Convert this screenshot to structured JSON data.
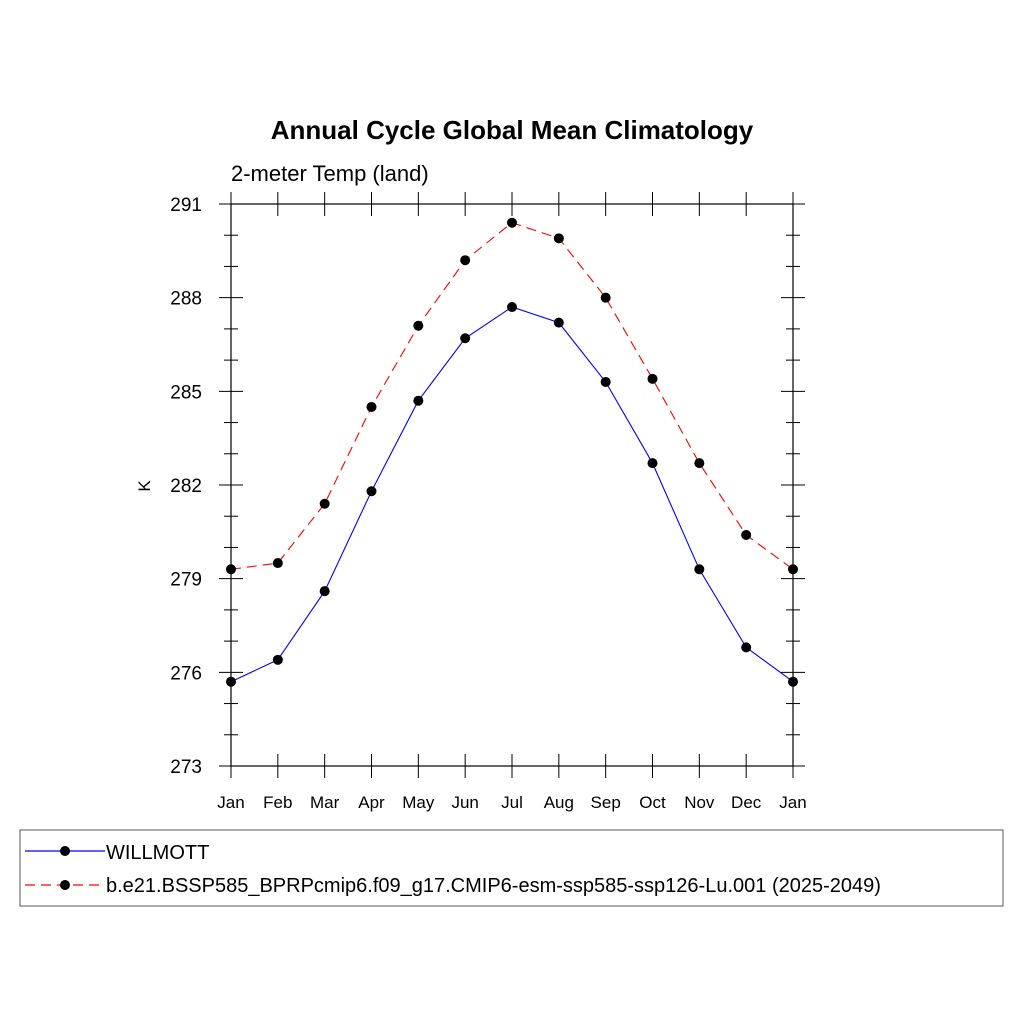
{
  "chart_data": {
    "type": "line",
    "title": "Annual Cycle Global Mean Climatology",
    "subtitle": "2-meter Temp (land)",
    "ylabel": "K",
    "xlabel": "",
    "categories": [
      "Jan",
      "Feb",
      "Mar",
      "Apr",
      "May",
      "Jun",
      "Jul",
      "Aug",
      "Sep",
      "Oct",
      "Nov",
      "Dec",
      "Jan"
    ],
    "ylim": [
      273,
      291
    ],
    "yticks": [
      273,
      276,
      279,
      282,
      285,
      288,
      291
    ],
    "yticks_labels": [
      "273",
      "276",
      "279",
      "282",
      "285",
      "288",
      "291"
    ],
    "grid": false,
    "legend_position": "bottom",
    "series": [
      {
        "name": "WILLMOTT",
        "color": "#0000ff",
        "dash": "solid",
        "marker": "filled-circle",
        "values": [
          275.7,
          276.4,
          278.6,
          281.8,
          284.7,
          286.7,
          287.7,
          287.2,
          285.3,
          282.7,
          279.3,
          276.8,
          275.7
        ]
      },
      {
        "name": "b.e21.BSSP585_BPRPcmip6.f09_g17.CMIP6-esm-ssp585-ssp126-Lu.001 (2025-2049)",
        "color": "#ff0000",
        "dash": "dashed",
        "marker": "filled-circle",
        "values": [
          279.3,
          279.5,
          281.4,
          284.5,
          287.1,
          289.2,
          290.4,
          289.9,
          288.0,
          285.4,
          282.7,
          280.4,
          279.3
        ]
      }
    ]
  }
}
